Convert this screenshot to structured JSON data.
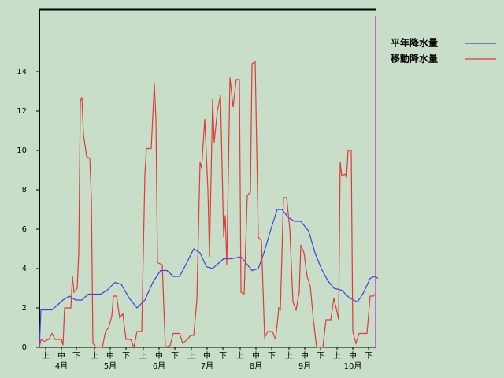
{
  "chart_data": {
    "type": "line",
    "xlim": [
      0,
      214
    ],
    "ylim": [
      0,
      17.16
    ],
    "yticks": [
      0,
      2,
      4,
      6,
      8,
      10,
      12,
      14
    ],
    "xticks": [
      {
        "value": 4,
        "label": "上"
      },
      {
        "value": 14,
        "label": "中"
      },
      {
        "value": 23.5,
        "label": "下"
      },
      {
        "value": 35,
        "label": "上"
      },
      {
        "value": 45,
        "label": "中"
      },
      {
        "value": 55,
        "label": "下"
      },
      {
        "value": 66,
        "label": "上"
      },
      {
        "value": 76,
        "label": "中"
      },
      {
        "value": 86,
        "label": "下"
      },
      {
        "value": 96.5,
        "label": "上"
      },
      {
        "value": 106.5,
        "label": "中"
      },
      {
        "value": 116.5,
        "label": "下"
      },
      {
        "value": 127.5,
        "label": "上"
      },
      {
        "value": 137.5,
        "label": "中"
      },
      {
        "value": 147.5,
        "label": "下"
      },
      {
        "value": 158.5,
        "label": "上"
      },
      {
        "value": 168.5,
        "label": "中"
      },
      {
        "value": 178.5,
        "label": "下"
      },
      {
        "value": 189,
        "label": "上"
      },
      {
        "value": 199,
        "label": "中"
      },
      {
        "value": 209,
        "label": "下"
      }
    ],
    "month_labels": [
      {
        "value": 14,
        "label": "4月"
      },
      {
        "value": 45,
        "label": "5月"
      },
      {
        "value": 76,
        "label": "6月"
      },
      {
        "value": 106.5,
        "label": "7月"
      },
      {
        "value": 137.5,
        "label": "8月"
      },
      {
        "value": 168.5,
        "label": "9月"
      },
      {
        "value": 199,
        "label": "10月"
      }
    ],
    "series": [
      {
        "name": "平年降水量",
        "color": "#3f3fe0",
        "x": [
          0,
          1,
          8,
          15,
          19,
          23,
          27,
          31,
          39,
          43,
          48,
          52,
          57,
          62,
          67,
          72,
          77,
          81,
          85,
          89,
          93,
          98,
          102,
          106,
          110,
          117,
          122,
          128,
          131,
          135,
          139,
          143,
          147,
          151,
          154,
          158,
          162,
          166,
          171,
          175,
          179,
          183,
          187,
          192,
          197,
          202,
          206,
          210,
          213,
          215
        ],
        "values": [
          0,
          1.9,
          1.9,
          2.4,
          2.6,
          2.4,
          2.4,
          2.7,
          2.7,
          2.9,
          3.3,
          3.2,
          2.5,
          2.0,
          2.4,
          3.3,
          3.9,
          3.9,
          3.6,
          3.6,
          4.2,
          5.0,
          4.8,
          4.1,
          4.0,
          4.5,
          4.5,
          4.6,
          4.3,
          3.9,
          4.0,
          4.9,
          6.0,
          7.0,
          7.0,
          6.6,
          6.4,
          6.4,
          5.9,
          4.8,
          4.0,
          3.4,
          3.0,
          2.9,
          2.5,
          2.3,
          2.8,
          3.5,
          3.6,
          3.5
        ]
      },
      {
        "name": "移動降水量",
        "color": "#e03a3a",
        "x": [
          0,
          1,
          3,
          6,
          8,
          10,
          14,
          15,
          16,
          20,
          21,
          22,
          24,
          25,
          26,
          27,
          28,
          30,
          32,
          33,
          34,
          36,
          40,
          42,
          44,
          46,
          47,
          49,
          51,
          53,
          55,
          58,
          60,
          62,
          65,
          67,
          68,
          71,
          73,
          74,
          75,
          78,
          80,
          83,
          85,
          89,
          91,
          94,
          96,
          98,
          100,
          102,
          103,
          105,
          107,
          108,
          110,
          111,
          113,
          115,
          117,
          118,
          119,
          121,
          123,
          125,
          127,
          128,
          130,
          132,
          134,
          135,
          137,
          139,
          141,
          143,
          145,
          148,
          150,
          152,
          153,
          155,
          157,
          159,
          161,
          163,
          165,
          166,
          168,
          170,
          172,
          174,
          176,
          180,
          182,
          185,
          187,
          189,
          190,
          191,
          192,
          194,
          195,
          196,
          198,
          199,
          201,
          203,
          208,
          210,
          212,
          213
        ],
        "values": [
          0,
          0.4,
          0.3,
          0.4,
          0.7,
          0.4,
          0.4,
          0.1,
          2.0,
          2.0,
          3.6,
          2.8,
          3.0,
          4.8,
          12.5,
          12.7,
          10.8,
          9.7,
          9.6,
          7.6,
          0.2,
          0,
          0,
          0.8,
          1.0,
          1.6,
          2.6,
          2.6,
          1.5,
          1.7,
          0.4,
          0.4,
          0,
          0.8,
          0.8,
          8.8,
          10.1,
          10.1,
          13.4,
          11.6,
          4.3,
          4.2,
          0,
          0.1,
          0.7,
          0.7,
          0.2,
          0.4,
          0.6,
          0.6,
          2.4,
          9.4,
          9.1,
          11.6,
          8.0,
          4.6,
          12.6,
          10.4,
          12.0,
          12.8,
          5.6,
          6.7,
          4.2,
          13.7,
          12.2,
          13.6,
          13.6,
          2.8,
          2.7,
          7.7,
          7.9,
          14.4,
          14.5,
          5.6,
          5.4,
          0.5,
          0.8,
          0.8,
          0.4,
          2.0,
          1.9,
          7.6,
          7.6,
          6.0,
          2.3,
          1.9,
          2.8,
          5.2,
          4.8,
          3.6,
          3.1,
          1.4,
          0,
          0,
          1.4,
          1.4,
          2.5,
          1.8,
          1.4,
          9.4,
          8.7,
          8.8,
          8.6,
          10.0,
          10.0,
          0.8,
          0.2,
          0.7,
          0.7,
          2.6,
          2.6,
          2.7
        ]
      }
    ]
  }
}
